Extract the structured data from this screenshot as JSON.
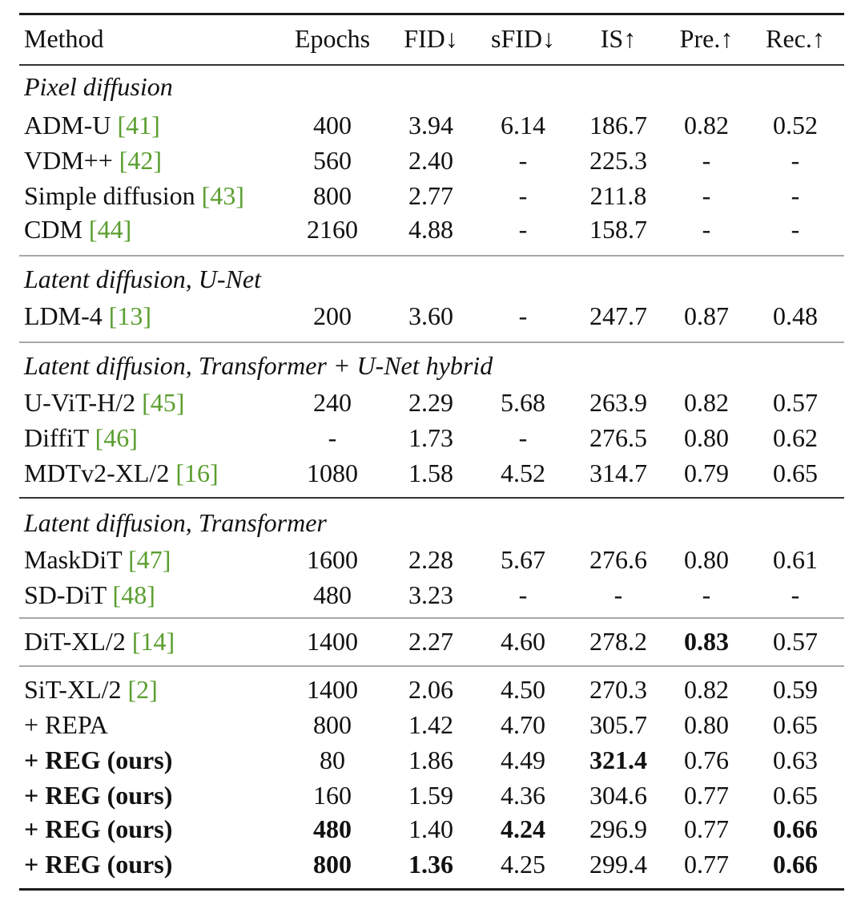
{
  "headers": {
    "method": "Method",
    "epochs": "Epochs",
    "fid": "FID↓",
    "sfid": "sFID↓",
    "is": "IS↑",
    "pre": "Pre.↑",
    "rec": "Rec.↑"
  },
  "sections": {
    "pixel": "Pixel diffusion",
    "latent_unet": "Latent diffusion, U-Net",
    "latent_hybrid": "Latent diffusion, Transformer + U-Net hybrid",
    "latent_transformer": "Latent diffusion, Transformer"
  },
  "rows": {
    "adm": {
      "name": "ADM-U ",
      "cite": "[41]",
      "epochs": "400",
      "fid": "3.94",
      "sfid": "6.14",
      "is": "186.7",
      "pre": "0.82",
      "rec": "0.52"
    },
    "vdm": {
      "name": "VDM++ ",
      "cite": "[42]",
      "epochs": "560",
      "fid": "2.40",
      "sfid": "-",
      "is": "225.3",
      "pre": "-",
      "rec": "-"
    },
    "simple": {
      "name": "Simple diffusion ",
      "cite": "[43]",
      "epochs": "800",
      "fid": "2.77",
      "sfid": "-",
      "is": "211.8",
      "pre": "-",
      "rec": "-"
    },
    "cdm": {
      "name": "CDM ",
      "cite": "[44]",
      "epochs": "2160",
      "fid": "4.88",
      "sfid": "-",
      "is": "158.7",
      "pre": "-",
      "rec": "-"
    },
    "ldm": {
      "name": "LDM-4 ",
      "cite": "[13]",
      "epochs": "200",
      "fid": "3.60",
      "sfid": "-",
      "is": "247.7",
      "pre": "0.87",
      "rec": "0.48"
    },
    "uvit": {
      "name": "U-ViT-H/2 ",
      "cite": "[45]",
      "epochs": "240",
      "fid": "2.29",
      "sfid": "5.68",
      "is": "263.9",
      "pre": "0.82",
      "rec": "0.57"
    },
    "diffit": {
      "name": "DiffiT ",
      "cite": "[46]",
      "epochs": "-",
      "fid": "1.73",
      "sfid": "-",
      "is": "276.5",
      "pre": "0.80",
      "rec": "0.62"
    },
    "mdt": {
      "name": "MDTv2-XL/2 ",
      "cite": "[16]",
      "epochs": "1080",
      "fid": "1.58",
      "sfid": "4.52",
      "is": "314.7",
      "pre": "0.79",
      "rec": "0.65"
    },
    "maskdit": {
      "name": "MaskDiT ",
      "cite": "[47]",
      "epochs": "1600",
      "fid": "2.28",
      "sfid": "5.67",
      "is": "276.6",
      "pre": "0.80",
      "rec": "0.61"
    },
    "sddit": {
      "name": "SD-DiT ",
      "cite": "[48]",
      "epochs": "480",
      "fid": "3.23",
      "sfid": "-",
      "is": "-",
      "pre": "-",
      "rec": "-"
    },
    "dit": {
      "name": "DiT-XL/2 ",
      "cite": "[14]",
      "epochs": "1400",
      "fid": "2.27",
      "sfid": "4.60",
      "is": "278.2",
      "pre": "0.83",
      "rec": "0.57"
    },
    "sit": {
      "name": "SiT-XL/2 ",
      "cite": "[2]",
      "epochs": "1400",
      "fid": "2.06",
      "sfid": "4.50",
      "is": "270.3",
      "pre": "0.82",
      "rec": "0.59"
    },
    "repa": {
      "name": "+ REPA",
      "epochs": "800",
      "fid": "1.42",
      "sfid": "4.70",
      "is": "305.7",
      "pre": "0.80",
      "rec": "0.65"
    },
    "reg80": {
      "name": "+ REG (ours)",
      "epochs": "80",
      "fid": "1.86",
      "sfid": "4.49",
      "is": "321.4",
      "pre": "0.76",
      "rec": "0.63"
    },
    "reg160": {
      "name": "+ REG (ours)",
      "epochs": "160",
      "fid": "1.59",
      "sfid": "4.36",
      "is": "304.6",
      "pre": "0.77",
      "rec": "0.65"
    },
    "reg480": {
      "name": "+ REG (ours)",
      "epochs": "480",
      "fid": "1.40",
      "sfid": "4.24",
      "is": "296.9",
      "pre": "0.77",
      "rec": "0.66"
    },
    "reg800": {
      "name": "+ REG (ours)",
      "epochs": "800",
      "fid": "1.36",
      "sfid": "4.25",
      "is": "299.4",
      "pre": "0.77",
      "rec": "0.66"
    }
  }
}
